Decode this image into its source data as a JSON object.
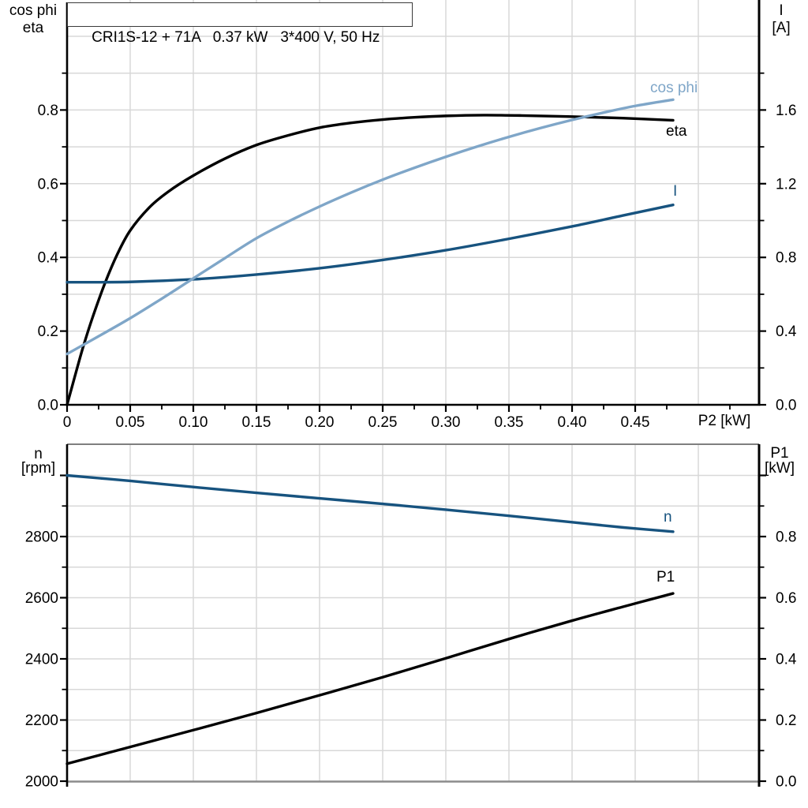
{
  "colors": {
    "black": "#000000",
    "dark_blue": "#17537f",
    "light_blue": "#7fa6c8",
    "grid": "#d8d8d8",
    "frame_gray": "#7f7f7f",
    "baseline_gray": "#8c8c8c",
    "background": "#ffffff"
  },
  "chart_data": [
    {
      "type": "line",
      "title": "CRI1S-12 + 71A   0.37 kW   3*400 V, 50 Hz",
      "x_axis": {
        "label": "P2 [kW]",
        "range": [
          0,
          0.548
        ],
        "tick_values": [
          0,
          0.05,
          0.1,
          0.15,
          0.2,
          0.25,
          0.3,
          0.35,
          0.4,
          0.45
        ],
        "tick_labels": [
          "0",
          "0.05",
          "0.10",
          "0.15",
          "0.20",
          "0.25",
          "0.30",
          "0.35",
          "0.40",
          "0.45"
        ],
        "grid_values": [
          0.05,
          0.1,
          0.15,
          0.2,
          0.25,
          0.3,
          0.35,
          0.4,
          0.45,
          0.5
        ]
      },
      "left_axis": {
        "title_lines": [
          "cos phi",
          "eta"
        ],
        "range": [
          0,
          1.0
        ],
        "tick_values": [
          0,
          0.2,
          0.4,
          0.6,
          0.8
        ],
        "tick_labels": [
          "0.0",
          "0.2",
          "0.4",
          "0.6",
          "0.8"
        ],
        "minor_values": [
          0.1,
          0.3,
          0.5,
          0.7,
          0.9
        ],
        "extra_grid_values": [
          1.0
        ]
      },
      "right_axis": {
        "title_lines": [
          "I",
          "[A]"
        ],
        "range": [
          0,
          2.0
        ],
        "tick_values": [
          0,
          0.4,
          0.8,
          1.2,
          1.6
        ],
        "tick_labels": [
          "0.0",
          "0.4",
          "0.8",
          "1.2",
          "1.6"
        ],
        "minor_values": [
          0.2,
          0.6,
          1.0,
          1.4,
          1.8
        ]
      },
      "series": [
        {
          "name": "eta",
          "axis": "left",
          "color": "black",
          "points": [
            [
              0,
              0
            ],
            [
              0.004,
              0.05
            ],
            [
              0.008,
              0.1
            ],
            [
              0.013,
              0.16
            ],
            [
              0.02,
              0.235
            ],
            [
              0.03,
              0.33
            ],
            [
              0.04,
              0.41
            ],
            [
              0.05,
              0.473
            ],
            [
              0.065,
              0.535
            ],
            [
              0.08,
              0.578
            ],
            [
              0.1,
              0.622
            ],
            [
              0.125,
              0.668
            ],
            [
              0.15,
              0.705
            ],
            [
              0.175,
              0.731
            ],
            [
              0.2,
              0.752
            ],
            [
              0.225,
              0.765
            ],
            [
              0.25,
              0.774
            ],
            [
              0.275,
              0.78
            ],
            [
              0.3,
              0.784
            ],
            [
              0.33,
              0.786
            ],
            [
              0.36,
              0.785
            ],
            [
              0.4,
              0.782
            ],
            [
              0.44,
              0.778
            ],
            [
              0.48,
              0.772
            ]
          ]
        },
        {
          "name": "I",
          "axis": "right",
          "color": "dark_blue",
          "points": [
            [
              0,
              0.665
            ],
            [
              0.05,
              0.667
            ],
            [
              0.1,
              0.681
            ],
            [
              0.15,
              0.707
            ],
            [
              0.2,
              0.741
            ],
            [
              0.25,
              0.786
            ],
            [
              0.3,
              0.839
            ],
            [
              0.35,
              0.901
            ],
            [
              0.4,
              0.968
            ],
            [
              0.44,
              1.027
            ],
            [
              0.48,
              1.085
            ]
          ]
        },
        {
          "name": "cos phi",
          "axis": "left",
          "color": "light_blue",
          "points": [
            [
              0,
              0.138
            ],
            [
              0.025,
              0.186
            ],
            [
              0.05,
              0.235
            ],
            [
              0.075,
              0.288
            ],
            [
              0.1,
              0.343
            ],
            [
              0.125,
              0.398
            ],
            [
              0.15,
              0.452
            ],
            [
              0.175,
              0.497
            ],
            [
              0.2,
              0.538
            ],
            [
              0.225,
              0.576
            ],
            [
              0.25,
              0.611
            ],
            [
              0.275,
              0.643
            ],
            [
              0.3,
              0.673
            ],
            [
              0.325,
              0.701
            ],
            [
              0.35,
              0.727
            ],
            [
              0.375,
              0.751
            ],
            [
              0.4,
              0.773
            ],
            [
              0.425,
              0.793
            ],
            [
              0.45,
              0.811
            ],
            [
              0.48,
              0.828
            ]
          ]
        }
      ]
    },
    {
      "type": "line",
      "x_axis": {
        "label": "",
        "range": [
          0,
          0.548
        ],
        "grid_values": [
          0.05,
          0.1,
          0.15,
          0.2,
          0.25,
          0.3,
          0.35,
          0.4,
          0.45,
          0.5
        ]
      },
      "left_axis": {
        "title_lines": [
          "n",
          "[rpm]"
        ],
        "range": [
          2000,
          3103
        ],
        "tick_values": [
          2000,
          2200,
          2400,
          2600,
          2800
        ],
        "tick_labels": [
          "2000",
          "2200",
          "2400",
          "2600",
          "2800"
        ],
        "minor_values": [
          2100,
          2300,
          2500,
          2700,
          2900
        ],
        "unlabeled_major_values": [
          3000
        ]
      },
      "right_axis": {
        "title_lines": [
          "P1",
          "[kW]"
        ],
        "range": [
          0,
          1.103
        ],
        "tick_values": [
          0,
          0.2,
          0.4,
          0.6,
          0.8
        ],
        "tick_labels": [
          "0.0",
          "0.2",
          "0.4",
          "0.6",
          "0.8"
        ],
        "minor_values": [
          0.1,
          0.3,
          0.5,
          0.7,
          0.9
        ],
        "unlabeled_major_values": [
          1.0
        ]
      },
      "series": [
        {
          "name": "n",
          "axis": "left",
          "color": "dark_blue",
          "points": [
            [
              0,
              3000
            ],
            [
              0.05,
              2982
            ],
            [
              0.1,
              2962
            ],
            [
              0.15,
              2943
            ],
            [
              0.2,
              2925
            ],
            [
              0.25,
              2907
            ],
            [
              0.3,
              2888
            ],
            [
              0.35,
              2868
            ],
            [
              0.4,
              2847
            ],
            [
              0.44,
              2830
            ],
            [
              0.48,
              2816
            ]
          ]
        },
        {
          "name": "P1",
          "axis": "right",
          "color": "black",
          "points": [
            [
              0,
              0.057
            ],
            [
              0.05,
              0.112
            ],
            [
              0.1,
              0.167
            ],
            [
              0.15,
              0.223
            ],
            [
              0.2,
              0.281
            ],
            [
              0.25,
              0.34
            ],
            [
              0.3,
              0.402
            ],
            [
              0.35,
              0.465
            ],
            [
              0.4,
              0.525
            ],
            [
              0.44,
              0.57
            ],
            [
              0.48,
              0.614
            ]
          ]
        }
      ]
    }
  ]
}
